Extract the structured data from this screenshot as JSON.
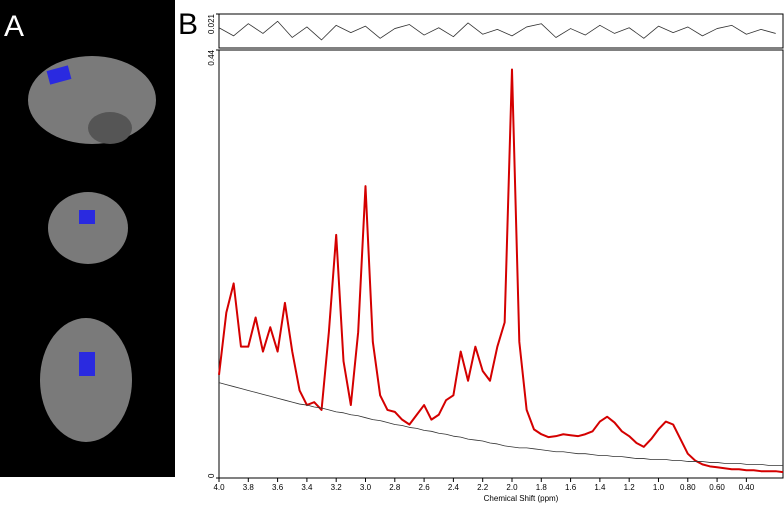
{
  "panel_labels": [
    "A",
    "B"
  ],
  "chart_data": [
    {
      "type": "line",
      "x_label": "Chemical Shift (ppm)",
      "x": [
        4.0,
        3.95,
        3.9,
        3.85,
        3.8,
        3.75,
        3.7,
        3.65,
        3.6,
        3.55,
        3.5,
        3.45,
        3.4,
        3.35,
        3.3,
        3.25,
        3.2,
        3.15,
        3.1,
        3.05,
        3.0,
        2.95,
        2.9,
        2.85,
        2.8,
        2.75,
        2.7,
        2.65,
        2.6,
        2.55,
        2.5,
        2.45,
        2.4,
        2.35,
        2.3,
        2.25,
        2.2,
        2.15,
        2.1,
        2.05,
        2.0,
        1.95,
        1.9,
        1.85,
        1.8,
        1.75,
        1.7,
        1.65,
        1.6,
        1.55,
        1.5,
        1.45,
        1.4,
        1.35,
        1.3,
        1.25,
        1.2,
        1.15,
        1.1,
        1.05,
        1.0,
        0.95,
        0.9,
        0.85,
        0.8,
        0.75,
        0.7,
        0.65,
        0.6,
        0.55,
        0.5,
        0.45,
        0.4,
        0.35,
        0.3,
        0.25,
        0.2,
        0.15
      ],
      "series": [
        {
          "color": "#d40000",
          "values": [
            0.106,
            0.17,
            0.2,
            0.135,
            0.135,
            0.165,
            0.13,
            0.155,
            0.13,
            0.18,
            0.13,
            0.09,
            0.075,
            0.078,
            0.07,
            0.15,
            0.25,
            0.12,
            0.075,
            0.15,
            0.3,
            0.14,
            0.085,
            0.07,
            0.068,
            0.06,
            0.055,
            0.065,
            0.075,
            0.06,
            0.065,
            0.08,
            0.085,
            0.13,
            0.1,
            0.135,
            0.11,
            0.1,
            0.135,
            0.16,
            0.42,
            0.14,
            0.07,
            0.05,
            0.045,
            0.042,
            0.043,
            0.045,
            0.044,
            0.043,
            0.045,
            0.048,
            0.058,
            0.063,
            0.057,
            0.048,
            0.043,
            0.036,
            0.032,
            0.04,
            0.05,
            0.058,
            0.055,
            0.04,
            0.025,
            0.018,
            0.014,
            0.012,
            0.011,
            0.01,
            0.009,
            0.009,
            0.008,
            0.008,
            0.007,
            0.007,
            0.007,
            0.006
          ]
        },
        {
          "color": "#333333",
          "values": [
            0.098,
            0.096,
            0.094,
            0.092,
            0.09,
            0.088,
            0.086,
            0.084,
            0.082,
            0.08,
            0.078,
            0.076,
            0.075,
            0.073,
            0.072,
            0.07,
            0.068,
            0.067,
            0.065,
            0.064,
            0.062,
            0.06,
            0.059,
            0.057,
            0.055,
            0.054,
            0.052,
            0.051,
            0.049,
            0.048,
            0.046,
            0.045,
            0.043,
            0.042,
            0.04,
            0.039,
            0.038,
            0.036,
            0.035,
            0.033,
            0.032,
            0.031,
            0.031,
            0.03,
            0.029,
            0.028,
            0.027,
            0.027,
            0.026,
            0.025,
            0.025,
            0.024,
            0.023,
            0.023,
            0.022,
            0.022,
            0.021,
            0.02,
            0.02,
            0.019,
            0.019,
            0.019,
            0.018,
            0.018,
            0.017,
            0.017,
            0.017,
            0.016,
            0.016,
            0.015,
            0.015,
            0.015,
            0.014,
            0.014,
            0.014,
            0.013,
            0.013,
            0.013
          ]
        }
      ],
      "xlim": [
        4.0,
        0.15
      ],
      "xticks": [
        {
          "value": 4,
          "label": "4.0"
        },
        3.8,
        3.6,
        3.4,
        3.2,
        {
          "value": 3,
          "label": "3.0"
        },
        2.8,
        2.6,
        2.4,
        2.2,
        {
          "value": 2,
          "label": "2.0"
        },
        1.8,
        1.6,
        1.4,
        1.2,
        {
          "value": 1,
          "label": "1.0"
        },
        {
          "value": 0.8,
          "label": "0.80"
        },
        {
          "value": 0.6,
          "label": "0.60"
        },
        {
          "value": 0.4,
          "label": "0.40"
        }
      ],
      "ylim": [
        0,
        0.44
      ],
      "yticks": [
        0,
        0.44
      ]
    },
    {
      "type": "line",
      "x": [
        4.0,
        3.9,
        3.8,
        3.7,
        3.6,
        3.5,
        3.4,
        3.3,
        3.2,
        3.1,
        3.0,
        2.9,
        2.8,
        2.7,
        2.6,
        2.5,
        2.4,
        2.3,
        2.2,
        2.1,
        2.0,
        1.9,
        1.8,
        1.7,
        1.6,
        1.5,
        1.4,
        1.3,
        1.2,
        1.1,
        1.0,
        0.9,
        0.8,
        0.7,
        0.6,
        0.5,
        0.4,
        0.3,
        0.2
      ],
      "series": [
        {
          "color": "#333333",
          "values": [
            0.004,
            -0.006,
            0.009,
            -0.003,
            0.012,
            -0.008,
            0.005,
            -0.011,
            0.007,
            -0.002,
            0.006,
            -0.009,
            0.003,
            0.008,
            -0.005,
            0.004,
            -0.007,
            0.01,
            -0.004,
            0.002,
            -0.006,
            0.005,
            0.009,
            -0.008,
            0.003,
            -0.005,
            0.007,
            -0.003,
            0.004,
            -0.009,
            0.006,
            -0.002,
            0.005,
            -0.006,
            0.003,
            0.007,
            -0.004,
            0.002,
            -0.003
          ]
        }
      ],
      "xlim": [
        4.0,
        0.15
      ],
      "ylim": [
        -0.021,
        0.021
      ],
      "yticks": [
        0.021
      ]
    }
  ]
}
